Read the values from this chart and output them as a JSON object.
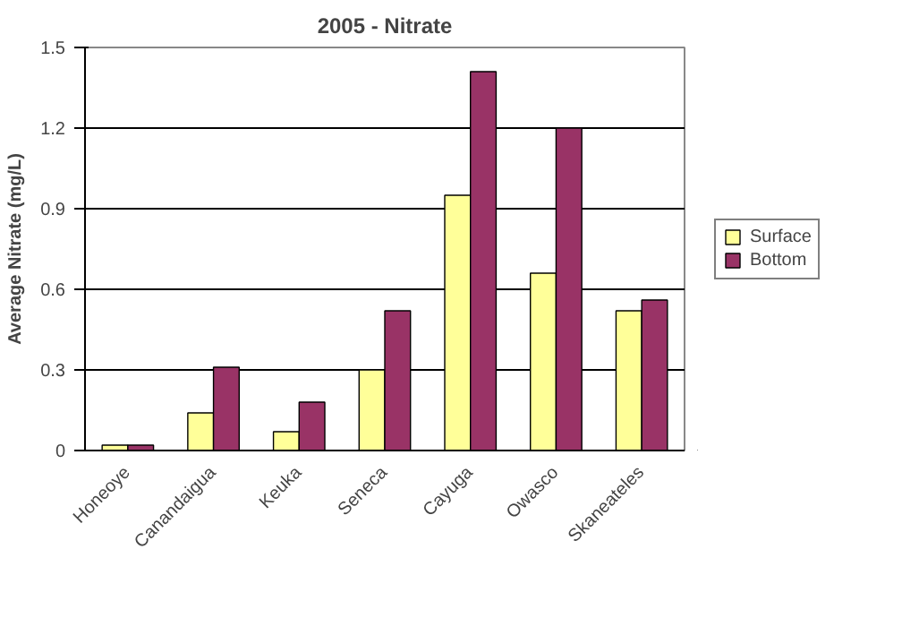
{
  "chart_data": {
    "type": "bar",
    "title": "2005 - Nitrate",
    "ylabel": "Average Nitrate (mg/L)",
    "categories": [
      "Honeoye",
      "Canandaigua",
      "Keuka",
      "Seneca",
      "Cayuga",
      "Owasco",
      "Skaneateles"
    ],
    "series": [
      {
        "name": "Surface",
        "color": "#ffff99",
        "values": [
          0.02,
          0.14,
          0.07,
          0.3,
          0.95,
          0.66,
          0.52
        ]
      },
      {
        "name": "Bottom",
        "color": "#993366",
        "values": [
          0.02,
          0.31,
          0.18,
          0.52,
          1.41,
          1.2,
          0.56
        ]
      }
    ],
    "ylim": [
      0,
      1.5
    ],
    "yticks": [
      0,
      0.3,
      0.6,
      0.9,
      1.2,
      1.5
    ],
    "grid": "y",
    "legend": "right"
  }
}
